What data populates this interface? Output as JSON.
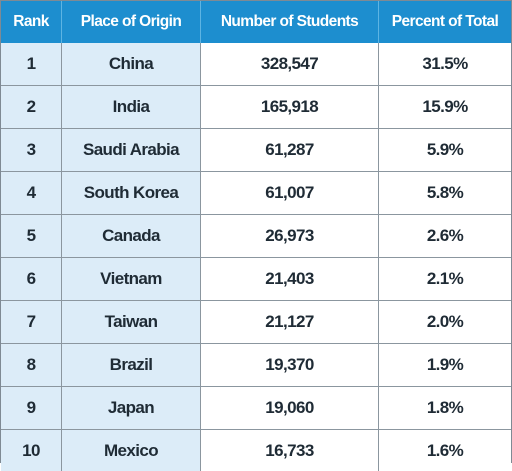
{
  "table": {
    "headers": [
      "Rank",
      "Place of Origin",
      "Number of Students",
      "Percent of Total"
    ],
    "rows": [
      {
        "rank": "1",
        "place": "China",
        "students": "328,547",
        "percent": "31.5%"
      },
      {
        "rank": "2",
        "place": "India",
        "students": "165,918",
        "percent": "15.9%"
      },
      {
        "rank": "3",
        "place": "Saudi Arabia",
        "students": "61,287",
        "percent": "5.9%"
      },
      {
        "rank": "4",
        "place": "South Korea",
        "students": "61,007",
        "percent": "5.8%"
      },
      {
        "rank": "5",
        "place": "Canada",
        "students": "26,973",
        "percent": "2.6%"
      },
      {
        "rank": "6",
        "place": "Vietnam",
        "students": "21,403",
        "percent": "2.1%"
      },
      {
        "rank": "7",
        "place": "Taiwan",
        "students": "21,127",
        "percent": "2.0%"
      },
      {
        "rank": "8",
        "place": "Brazil",
        "students": "19,370",
        "percent": "1.9%"
      },
      {
        "rank": "9",
        "place": "Japan",
        "students": "19,060",
        "percent": "1.8%"
      },
      {
        "rank": "10",
        "place": "Mexico",
        "students": "16,733",
        "percent": "1.6%"
      }
    ]
  },
  "colors": {
    "header_background": "#1d8ecf",
    "header_text": "#ffffff",
    "highlight_columns": "#dcecf8",
    "border": "#8b969f",
    "body_text": "#1f2b35"
  }
}
